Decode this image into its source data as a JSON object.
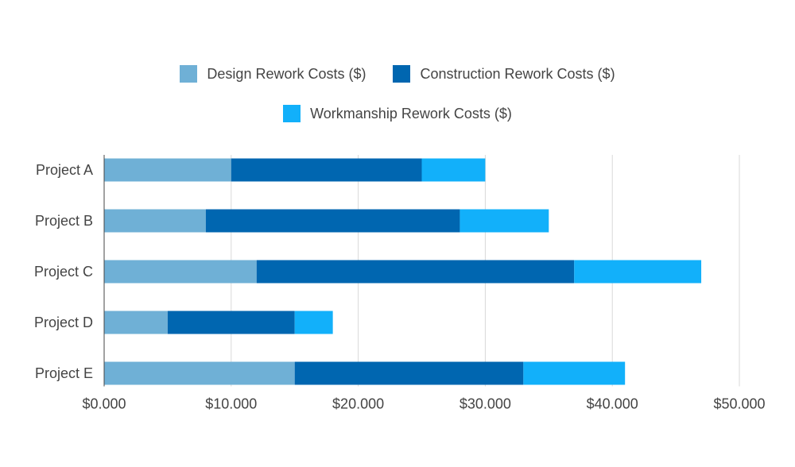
{
  "chart_data": {
    "type": "bar",
    "orientation": "horizontal",
    "stacked": true,
    "categories": [
      "Project A",
      "Project B",
      "Project C",
      "Project D",
      "Project E"
    ],
    "series": [
      {
        "name": "Design Rework Costs ($)",
        "color": "#6fb0d6",
        "values": [
          10000,
          8000,
          12000,
          5000,
          15000
        ]
      },
      {
        "name": "Construction Rework Costs ($)",
        "color": "#0066b0",
        "values": [
          15000,
          20000,
          25000,
          10000,
          18000
        ]
      },
      {
        "name": "Workmanship Rework Costs ($)",
        "color": "#12b0fa",
        "values": [
          5000,
          7000,
          10000,
          3000,
          8000
        ]
      }
    ],
    "x_ticks": [
      0,
      10000,
      20000,
      30000,
      40000,
      50000
    ],
    "x_tick_labels": [
      "$0.000",
      "$10.000",
      "$20.000",
      "$30.000",
      "$40.000",
      "$50.000"
    ],
    "xlim": [
      0,
      50000
    ],
    "grid": "vertical",
    "legend_position": "top",
    "title": "",
    "xlabel": "",
    "ylabel": ""
  }
}
